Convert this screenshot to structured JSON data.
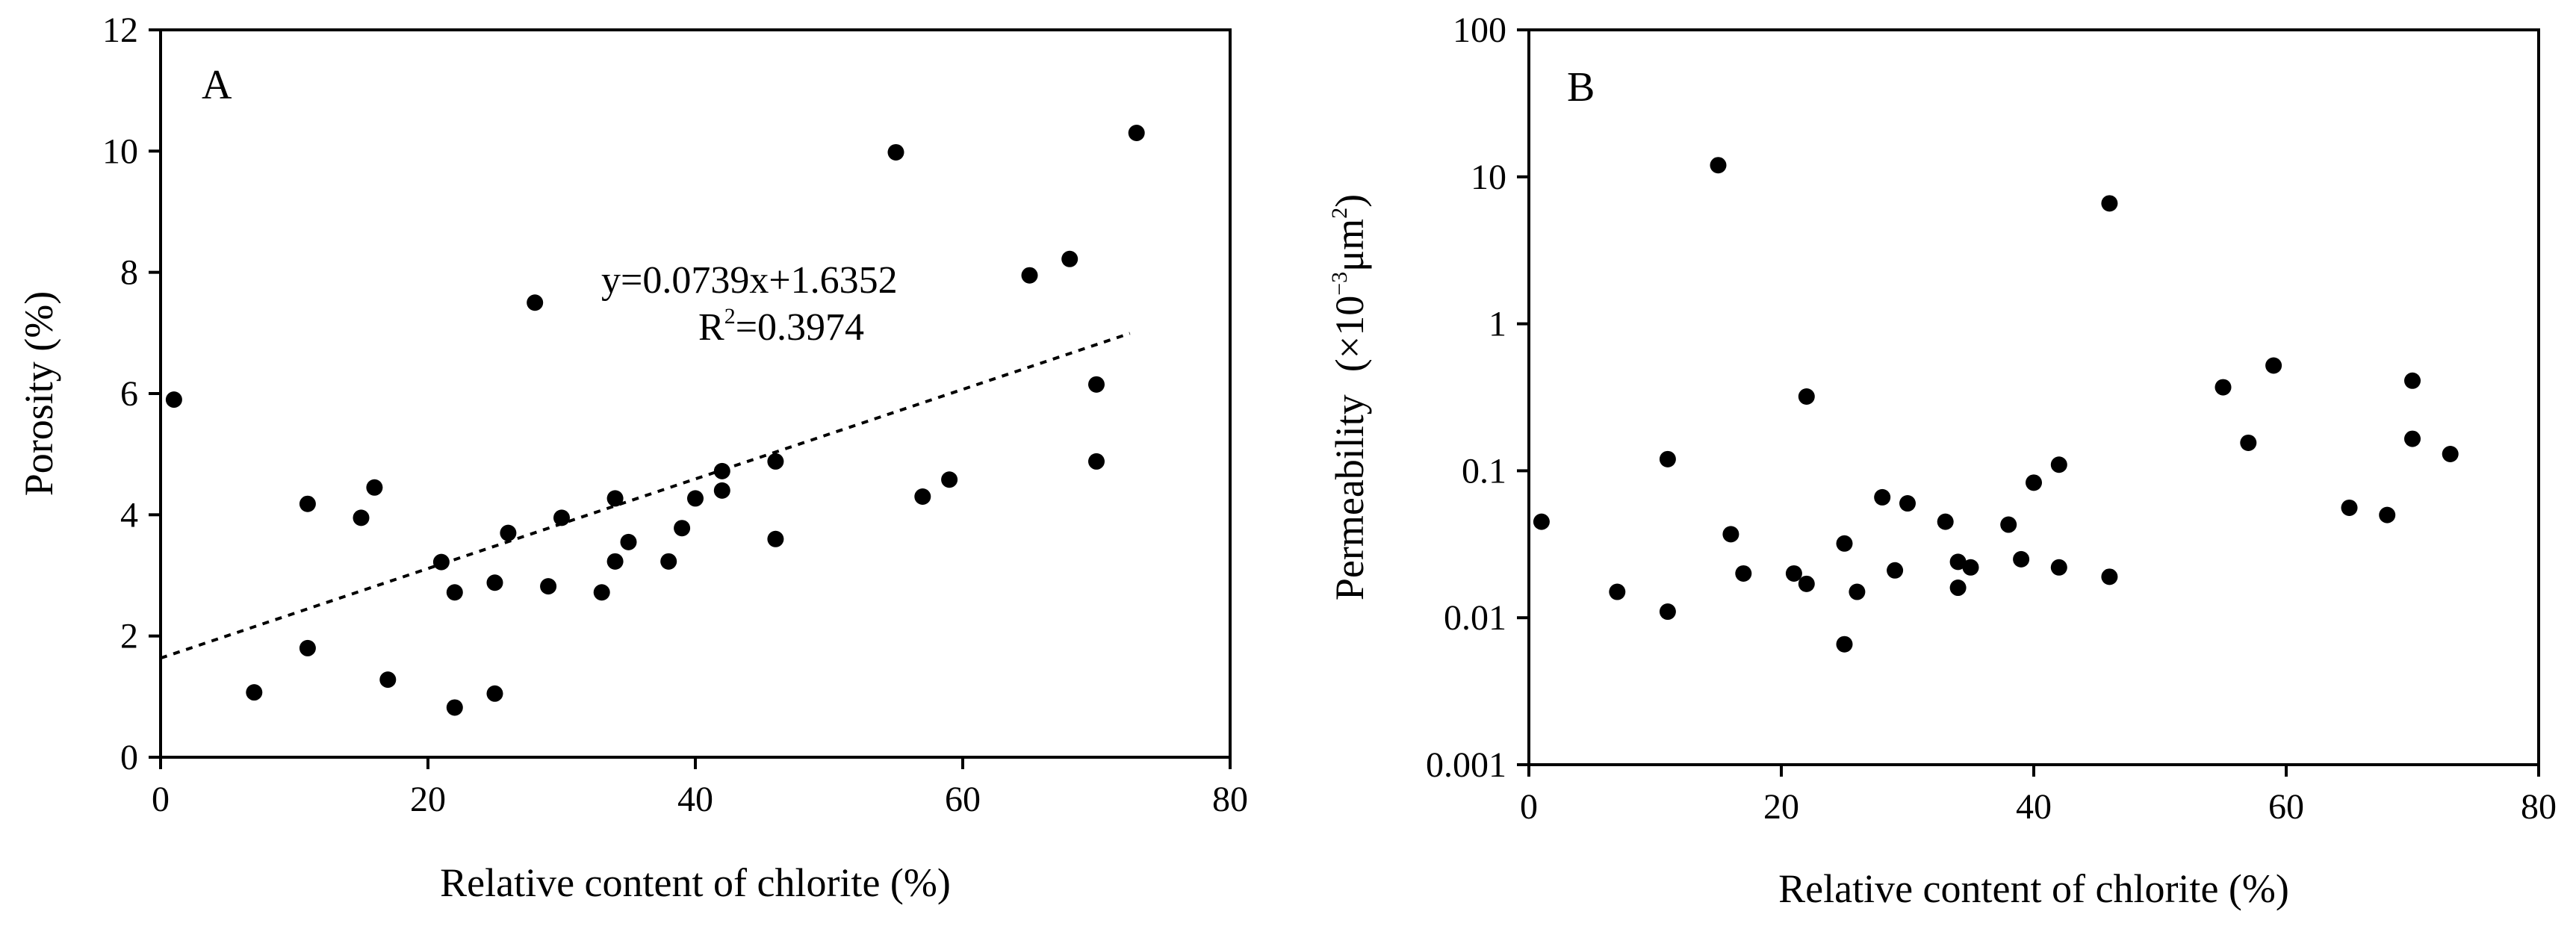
{
  "chart_data": [
    {
      "panel": "A",
      "type": "scatter",
      "xlabel": "Relative content of chlorite (%)",
      "ylabel": "Porosity (%)",
      "xlim": [
        0,
        80
      ],
      "ylim": [
        0,
        12
      ],
      "xticks": [
        0,
        20,
        40,
        60,
        80
      ],
      "yticks": [
        0,
        2,
        4,
        6,
        8,
        10,
        12
      ],
      "xtick_labels": [
        "0",
        "20",
        "40",
        "60",
        "80"
      ],
      "ytick_labels": [
        "0",
        "2",
        "4",
        "6",
        "8",
        "10",
        "12"
      ],
      "points": [
        [
          1,
          5.9
        ],
        [
          7,
          1.07
        ],
        [
          11,
          4.18
        ],
        [
          11,
          1.8
        ],
        [
          15,
          3.95
        ],
        [
          16,
          4.45
        ],
        [
          17,
          1.28
        ],
        [
          21,
          3.22
        ],
        [
          22,
          2.72
        ],
        [
          22,
          0.82
        ],
        [
          25,
          2.88
        ],
        [
          25,
          1.05
        ],
        [
          26,
          3.7
        ],
        [
          28,
          7.5
        ],
        [
          29,
          2.82
        ],
        [
          30,
          3.95
        ],
        [
          33,
          2.72
        ],
        [
          34,
          4.27
        ],
        [
          34,
          3.23
        ],
        [
          35,
          3.55
        ],
        [
          38,
          3.23
        ],
        [
          39,
          3.78
        ],
        [
          40,
          4.27
        ],
        [
          42,
          4.72
        ],
        [
          42,
          4.4
        ],
        [
          46,
          4.88
        ],
        [
          46,
          3.6
        ],
        [
          55,
          9.98
        ],
        [
          57,
          4.3
        ],
        [
          59,
          4.58
        ],
        [
          65,
          7.95
        ],
        [
          68,
          8.22
        ],
        [
          70,
          6.15
        ],
        [
          70,
          4.88
        ],
        [
          73,
          10.3
        ]
      ],
      "fit": {
        "slope": 0.0739,
        "intercept": 1.6352,
        "x_range": [
          0,
          72.5
        ],
        "style": "dotted"
      },
      "annotations": {
        "equation": "y=0.0739x+1.6352",
        "r2_prefix": "R",
        "r2_sup": "2",
        "r2_value": "=0.3974"
      }
    },
    {
      "panel": "B",
      "type": "scatter",
      "yscale": "log",
      "xlabel": "Relative content of chlorite (%)",
      "ylabel_main": "Permeability",
      "ylabel_unit_open": "(×10",
      "ylabel_unit_exp": "−3",
      "ylabel_unit_mid": "μm",
      "ylabel_unit_exp2": "2",
      "ylabel_unit_close": ")",
      "xlim": [
        0,
        80
      ],
      "ylim": [
        0.001,
        100
      ],
      "xticks": [
        0,
        20,
        40,
        60,
        80
      ],
      "yticks": [
        0.001,
        0.01,
        0.1,
        1,
        10,
        100
      ],
      "xtick_labels": [
        "0",
        "20",
        "40",
        "60",
        "80"
      ],
      "ytick_labels": [
        "0.001",
        "0.01",
        "0.1",
        "1",
        "10",
        "100"
      ],
      "points": [
        [
          1,
          0.045
        ],
        [
          7,
          0.015
        ],
        [
          11,
          0.12
        ],
        [
          11,
          0.011
        ],
        [
          15,
          12
        ],
        [
          16,
          0.037
        ],
        [
          17,
          0.02
        ],
        [
          21,
          0.02
        ],
        [
          22,
          0.32
        ],
        [
          22,
          0.017
        ],
        [
          25,
          0.032
        ],
        [
          25,
          0.0066
        ],
        [
          26,
          0.015
        ],
        [
          28,
          0.066
        ],
        [
          29,
          0.021
        ],
        [
          30,
          0.06
        ],
        [
          33,
          0.045
        ],
        [
          34,
          0.024
        ],
        [
          34,
          0.016
        ],
        [
          35,
          0.022
        ],
        [
          38,
          0.043
        ],
        [
          39,
          0.025
        ],
        [
          40,
          0.083
        ],
        [
          42,
          0.11
        ],
        [
          42,
          0.022
        ],
        [
          46,
          6.6
        ],
        [
          46,
          0.019
        ],
        [
          55,
          0.37
        ],
        [
          57,
          0.155
        ],
        [
          59,
          0.52
        ],
        [
          65,
          0.056
        ],
        [
          68,
          0.05
        ],
        [
          70,
          0.41
        ],
        [
          70,
          0.165
        ],
        [
          73,
          0.13
        ]
      ]
    }
  ]
}
